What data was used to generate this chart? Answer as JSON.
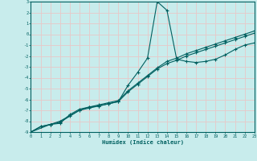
{
  "xlabel": "Humidex (Indice chaleur)",
  "bg_color": "#c8ecec",
  "grid_color": "#e8c8c8",
  "line_color": "#006060",
  "xlim": [
    0,
    23
  ],
  "ylim": [
    -9,
    3
  ],
  "xticks": [
    0,
    1,
    2,
    3,
    4,
    5,
    6,
    7,
    8,
    9,
    10,
    11,
    12,
    13,
    14,
    15,
    16,
    17,
    18,
    19,
    20,
    21,
    22,
    23
  ],
  "yticks": [
    3,
    2,
    1,
    0,
    -1,
    -2,
    -3,
    -4,
    -5,
    -6,
    -7,
    -8,
    -9
  ],
  "curve1_x": [
    0,
    1,
    2,
    3,
    4,
    5,
    6,
    7,
    8,
    9,
    10,
    11,
    12,
    13,
    14,
    15,
    16,
    17,
    18,
    19,
    20,
    21,
    22,
    23
  ],
  "curve1_y": [
    -9.0,
    -8.5,
    -8.3,
    -8.2,
    -7.4,
    -6.9,
    -6.7,
    -6.6,
    -6.4,
    -6.2,
    -4.7,
    -3.5,
    -2.2,
    3.0,
    2.2,
    -2.3,
    -2.5,
    -2.6,
    -2.5,
    -2.3,
    -1.9,
    -1.4,
    -1.0,
    -0.8
  ],
  "curve2_x": [
    0,
    2,
    3,
    5,
    6,
    7,
    8,
    9,
    10,
    11,
    12,
    13,
    14,
    15,
    16,
    17,
    18,
    19,
    20,
    21,
    22,
    23
  ],
  "curve2_y": [
    -9.0,
    -8.3,
    -8.1,
    -7.0,
    -6.7,
    -6.5,
    -6.3,
    -6.1,
    -5.2,
    -4.5,
    -3.8,
    -3.1,
    -2.5,
    -2.2,
    -1.8,
    -1.5,
    -1.2,
    -0.9,
    -0.6,
    -0.3,
    0.0,
    0.3
  ],
  "curve3_x": [
    0,
    1,
    2,
    3,
    4,
    5,
    6,
    7,
    8,
    9,
    10,
    11,
    12,
    13,
    14,
    15,
    16,
    17,
    18,
    19,
    20,
    21,
    22,
    23
  ],
  "curve3_y": [
    -9.0,
    -8.5,
    -8.3,
    -8.0,
    -7.5,
    -7.0,
    -6.8,
    -6.6,
    -6.4,
    -6.2,
    -5.3,
    -4.6,
    -3.9,
    -3.2,
    -2.7,
    -2.4,
    -2.0,
    -1.7,
    -1.4,
    -1.1,
    -0.8,
    -0.5,
    -0.2,
    0.1
  ]
}
